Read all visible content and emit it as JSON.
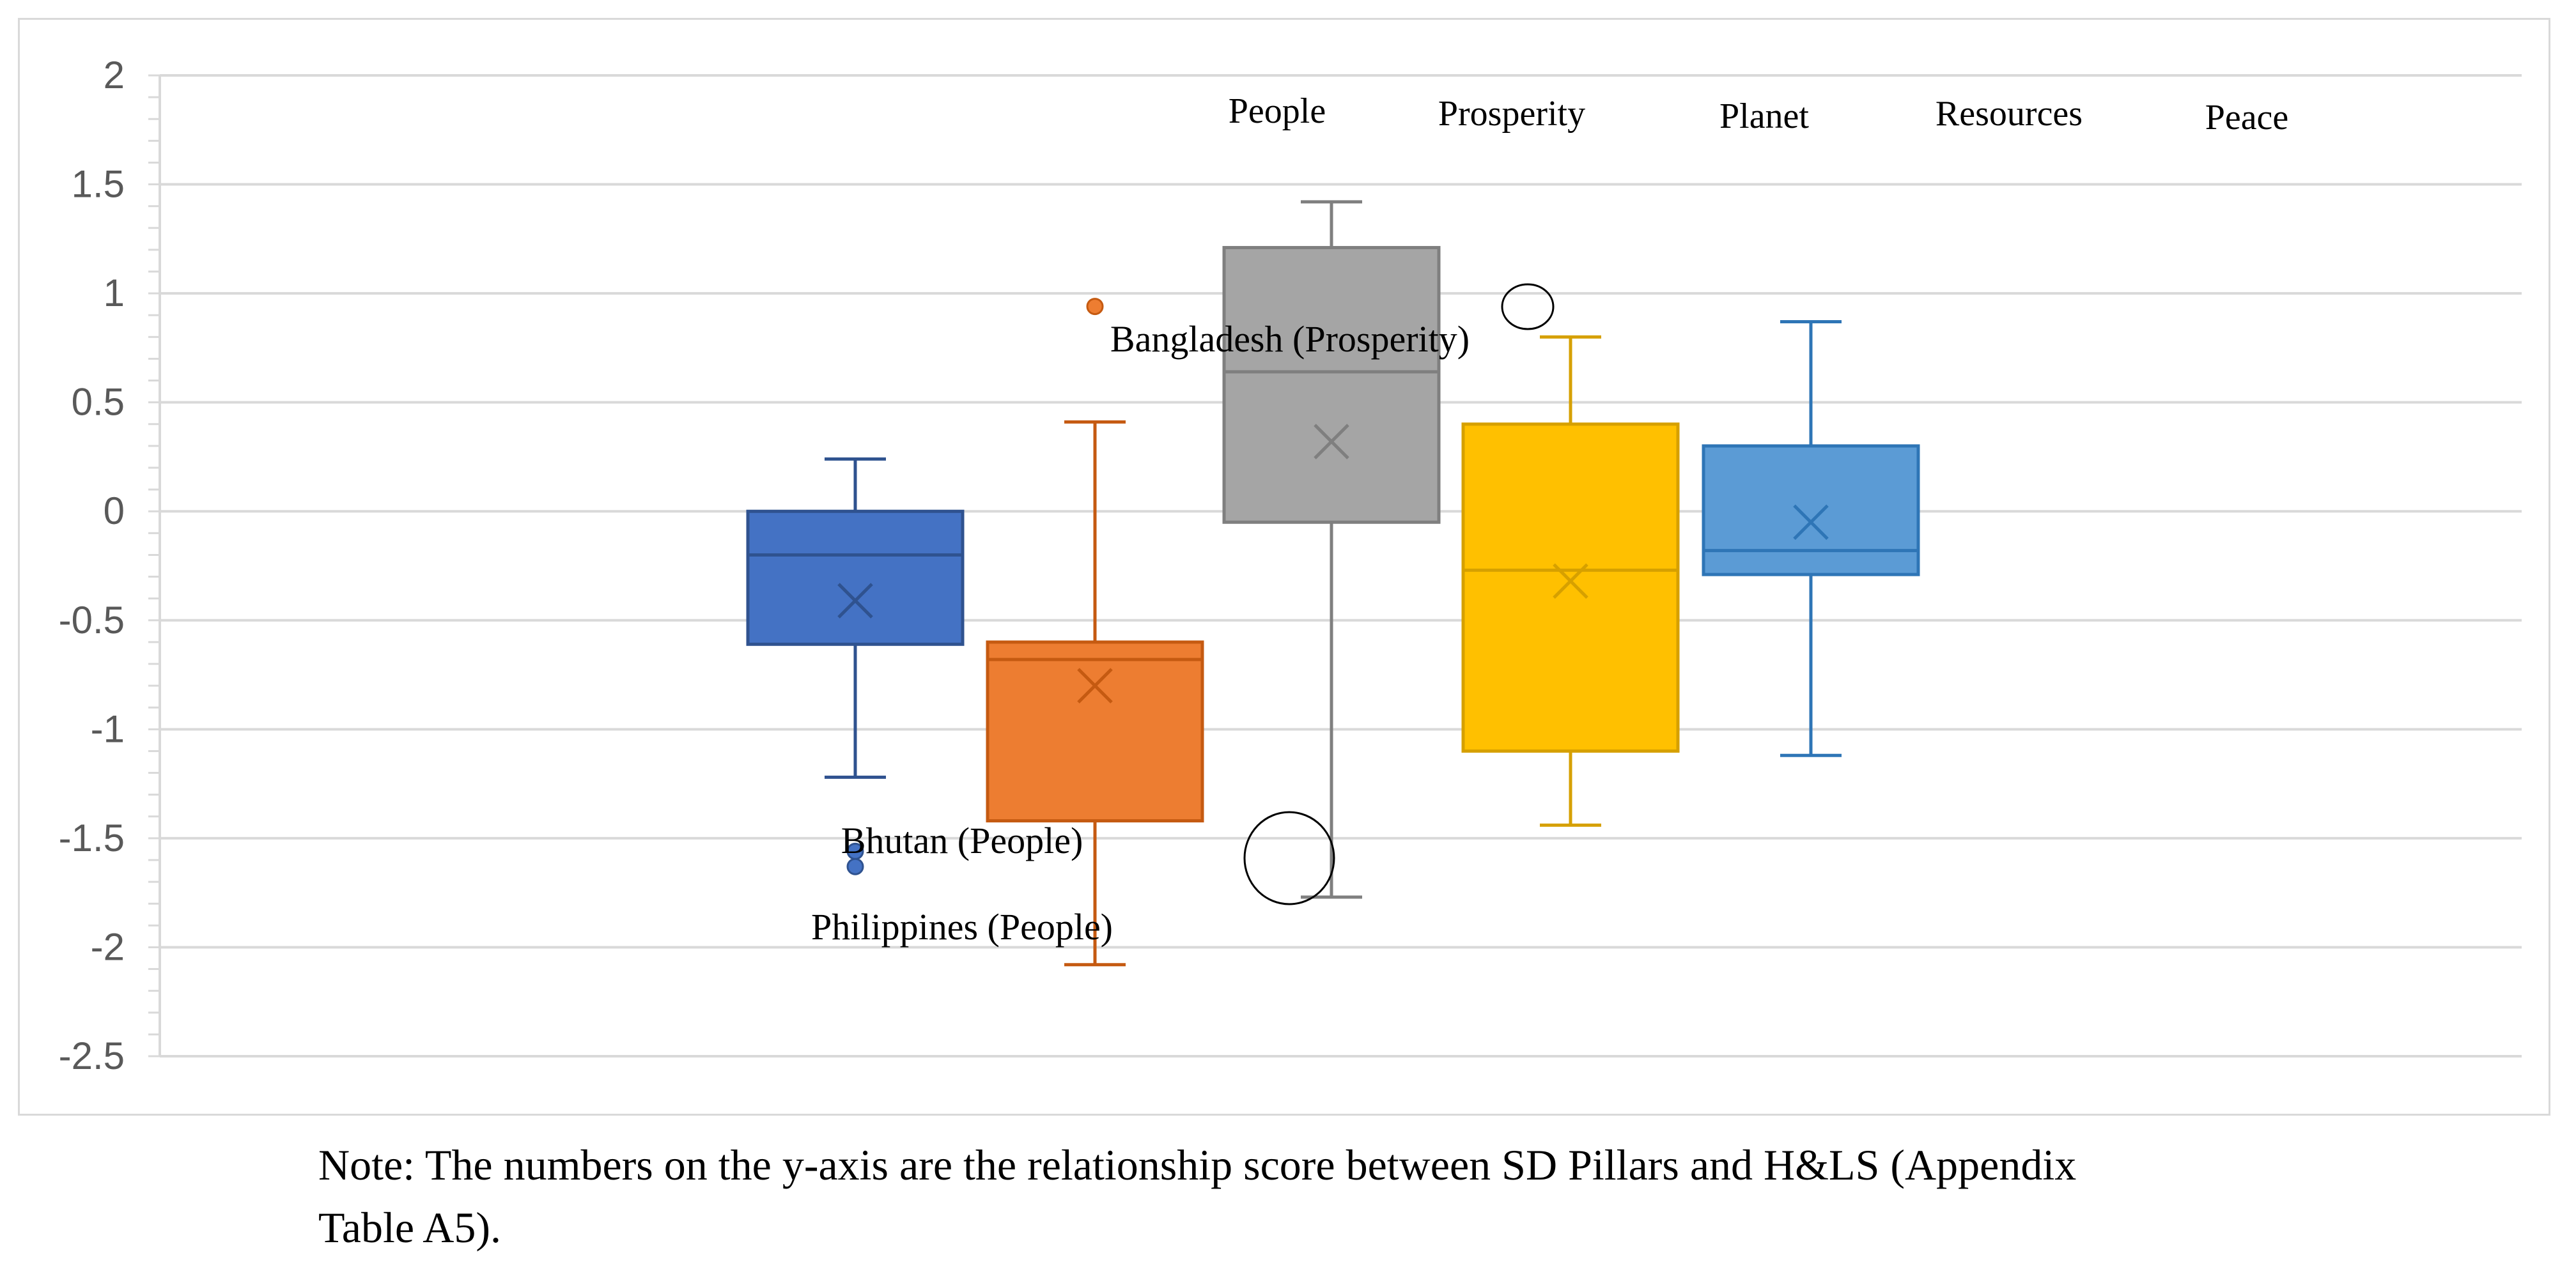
{
  "chart_data": {
    "type": "boxplot",
    "title": "",
    "xlabel": "",
    "ylabel": "",
    "ylim": [
      -2.5,
      2
    ],
    "yticks": [
      2,
      1.5,
      1,
      0.5,
      0,
      -0.5,
      -1,
      -1.5,
      -2,
      -2.5
    ],
    "ytick_labels": [
      "2",
      "1.5",
      "1",
      "0.5",
      "0",
      "-0.5",
      "-1",
      "-1.5",
      "-2",
      "-2.5"
    ],
    "legend": [
      "People",
      "Prosperity",
      "Planet",
      "Resources",
      "Peace"
    ],
    "series": [
      {
        "name": "People",
        "color": "#4472c4",
        "stroke": "#2f528f",
        "min": -1.22,
        "q1": -0.61,
        "median": -0.2,
        "q3": 0.0,
        "max": 0.24,
        "mean": -0.41,
        "outliers": [
          -1.56,
          -1.63
        ]
      },
      {
        "name": "Prosperity",
        "color": "#ed7d31",
        "stroke": "#c55a11",
        "min": -2.08,
        "q1": -1.42,
        "median": -0.68,
        "q3": -0.6,
        "max": 0.41,
        "mean": -0.8,
        "outliers": [
          0.94
        ]
      },
      {
        "name": "Planet",
        "color": "#a5a5a5",
        "stroke": "#7f7f7f",
        "min": -1.77,
        "q1": -0.05,
        "median": 0.64,
        "q3": 1.21,
        "max": 1.42,
        "mean": 0.32,
        "outliers": []
      },
      {
        "name": "Resources",
        "color": "#ffc000",
        "stroke": "#d6a000",
        "min": -1.44,
        "q1": -1.1,
        "median": -0.27,
        "q3": 0.4,
        "max": 0.8,
        "mean": -0.32,
        "outliers": []
      },
      {
        "name": "Peace",
        "color": "#5b9bd5",
        "stroke": "#2e75b6",
        "min": -1.12,
        "q1": -0.29,
        "median": -0.18,
        "q3": 0.3,
        "max": 0.87,
        "mean": -0.05,
        "outliers": []
      }
    ],
    "annotations": [
      "Bangladesh (Prosperity)",
      "Bhutan (People)",
      "Philippines (People)"
    ]
  },
  "note": {
    "line1": "Note: The numbers on the y-axis are the relationship score between SD Pillars and H&LS (Appendix",
    "line2": "Table A5)."
  }
}
